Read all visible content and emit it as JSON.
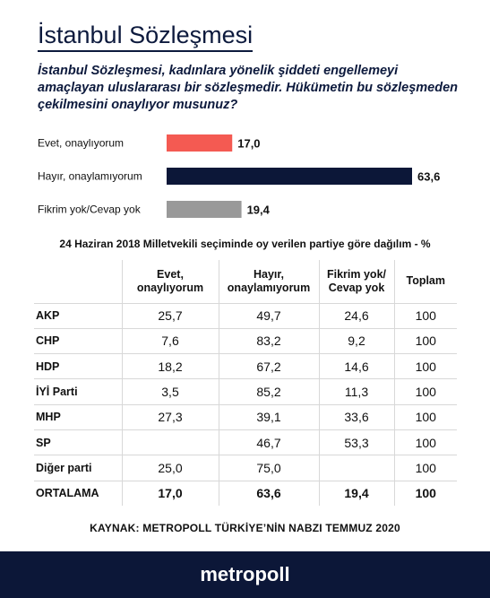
{
  "title": "İstanbul Sözleşmesi",
  "question": "İstanbul Sözleşmesi, kadınlara yönelik şiddeti engellemeyi amaçlayan uluslararası bir sözleşmedir. Hükümetin bu sözleşmeden çekilmesini onaylıyor musunuz?",
  "chart_data": {
    "type": "bar",
    "orientation": "horizontal",
    "categories": [
      "Evet, onaylıyorum",
      "Hayır, onaylamıyorum",
      "Fikrim yok/Cevap yok"
    ],
    "values": [
      17.0,
      63.6,
      19.4
    ],
    "value_labels": [
      "17,0",
      "63,6",
      "19,4"
    ],
    "colors": [
      "#f45a52",
      "#0c1738",
      "#999999"
    ],
    "title": "",
    "xlabel": "",
    "ylabel": "",
    "xlim": [
      0,
      63.6
    ],
    "grid": false
  },
  "table": {
    "subtitle": "24 Haziran 2018 Milletvekili seçiminde oy verilen partiye göre dağılım - %",
    "columns": [
      "",
      "Evet, onaylıyorum",
      "Hayır, onaylamıyorum",
      "Fikrim yok/ Cevap yok",
      "Toplam"
    ],
    "rows": [
      [
        "AKP",
        "25,7",
        "49,7",
        "24,6",
        "100"
      ],
      [
        "CHP",
        "7,6",
        "83,2",
        "9,2",
        "100"
      ],
      [
        "HDP",
        "18,2",
        "67,2",
        "14,6",
        "100"
      ],
      [
        "İYİ Parti",
        "3,5",
        "85,2",
        "11,3",
        "100"
      ],
      [
        "MHP",
        "27,3",
        "39,1",
        "33,6",
        "100"
      ],
      [
        "SP",
        "",
        "46,7",
        "53,3",
        "100"
      ],
      [
        "Diğer parti",
        "25,0",
        "75,0",
        "",
        "100"
      ],
      [
        "ORTALAMA",
        "17,0",
        "63,6",
        "19,4",
        "100"
      ]
    ]
  },
  "source": "KAYNAK:  METROPOLL  TÜRKİYE’NİN NABZI  TEMMUZ 2020",
  "footer": "metropoll"
}
